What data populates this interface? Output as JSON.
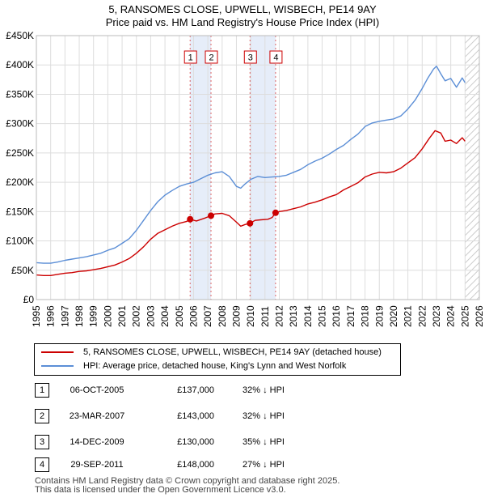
{
  "chart_data": {
    "type": "line",
    "title": "5, RANSOMES CLOSE, UPWELL, WISBECH, PE14 9AY",
    "subtitle": "Price paid vs. HM Land Registry's House Price Index (HPI)",
    "xlim": [
      1995,
      2026
    ],
    "ylim": [
      0,
      450000
    ],
    "x_ticks": [
      1995,
      1996,
      1997,
      1998,
      1999,
      2000,
      2001,
      2002,
      2003,
      2004,
      2005,
      2006,
      2007,
      2008,
      2009,
      2010,
      2011,
      2012,
      2013,
      2014,
      2015,
      2016,
      2017,
      2018,
      2019,
      2020,
      2021,
      2022,
      2023,
      2024,
      2025,
      2026
    ],
    "y_ticks": [
      {
        "value": 0,
        "label": "£0"
      },
      {
        "value": 50000,
        "label": "£50K"
      },
      {
        "value": 100000,
        "label": "£100K"
      },
      {
        "value": 150000,
        "label": "£150K"
      },
      {
        "value": 200000,
        "label": "£200K"
      },
      {
        "value": 250000,
        "label": "£250K"
      },
      {
        "value": 300000,
        "label": "£300K"
      },
      {
        "value": 350000,
        "label": "£350K"
      },
      {
        "value": 400000,
        "label": "£400K"
      },
      {
        "value": 450000,
        "label": "£450K"
      }
    ],
    "grid": true,
    "projection_start": 2025.0,
    "series": [
      {
        "name": "5, RANSOMES CLOSE, UPWELL, WISBECH, PE14 9AY (detached house)",
        "color": "#cc0000",
        "x": [
          1995.0,
          1995.5,
          1996.0,
          1996.5,
          1997.0,
          1997.5,
          1998.0,
          1998.5,
          1999.0,
          1999.5,
          2000.0,
          2000.5,
          2001.0,
          2001.5,
          2002.0,
          2002.5,
          2003.0,
          2003.5,
          2004.0,
          2004.5,
          2005.0,
          2005.5,
          2005.76,
          2006.2,
          2006.8,
          2007.22,
          2007.5,
          2008.0,
          2008.5,
          2009.0,
          2009.3,
          2009.6,
          2009.95,
          2010.3,
          2010.7,
          2011.2,
          2011.5,
          2011.74,
          2012.0,
          2012.5,
          2013.0,
          2013.5,
          2014.0,
          2014.5,
          2015.0,
          2015.5,
          2016.0,
          2016.5,
          2017.0,
          2017.5,
          2018.0,
          2018.5,
          2019.0,
          2019.5,
          2020.0,
          2020.5,
          2021.0,
          2021.5,
          2022.0,
          2022.5,
          2022.9,
          2023.3,
          2023.6,
          2024.0,
          2024.4,
          2024.8,
          2025.0
        ],
        "y": [
          42000,
          41000,
          41000,
          43000,
          45000,
          46000,
          48000,
          49000,
          51000,
          53000,
          56000,
          59000,
          64000,
          70000,
          79000,
          90000,
          103000,
          113000,
          119000,
          125000,
          130000,
          133000,
          137000,
          134000,
          139000,
          143000,
          146000,
          147000,
          143000,
          132000,
          125000,
          128000,
          130000,
          135000,
          136000,
          137000,
          140000,
          148000,
          150000,
          152000,
          155000,
          158000,
          163000,
          166000,
          170000,
          175000,
          179000,
          187000,
          193000,
          199000,
          209000,
          214000,
          217000,
          216000,
          218000,
          224000,
          233000,
          242000,
          257000,
          275000,
          288000,
          284000,
          270000,
          272000,
          266000,
          276000,
          270000
        ]
      },
      {
        "name": "HPI: Average price, detached house, King's Lynn and West Norfolk",
        "color": "#5b8ed6",
        "x": [
          1995.0,
          1995.5,
          1996.0,
          1996.5,
          1997.0,
          1997.5,
          1998.0,
          1998.5,
          1999.0,
          1999.5,
          2000.0,
          2000.5,
          2001.0,
          2001.5,
          2002.0,
          2002.5,
          2003.0,
          2003.5,
          2004.0,
          2004.5,
          2005.0,
          2005.5,
          2006.0,
          2006.5,
          2007.0,
          2007.5,
          2008.0,
          2008.5,
          2009.0,
          2009.3,
          2009.6,
          2010.0,
          2010.5,
          2011.0,
          2011.5,
          2012.0,
          2012.5,
          2013.0,
          2013.5,
          2014.0,
          2014.5,
          2015.0,
          2015.5,
          2016.0,
          2016.5,
          2017.0,
          2017.5,
          2018.0,
          2018.5,
          2019.0,
          2019.5,
          2020.0,
          2020.5,
          2021.0,
          2021.5,
          2022.0,
          2022.4,
          2022.8,
          2023.0,
          2023.3,
          2023.6,
          2024.0,
          2024.4,
          2024.8,
          2025.0
        ],
        "y": [
          63000,
          62000,
          62000,
          64000,
          67000,
          69000,
          71000,
          73000,
          76000,
          79000,
          84000,
          88000,
          96000,
          104000,
          118000,
          135000,
          152000,
          167000,
          178000,
          186000,
          193000,
          197000,
          200000,
          206000,
          212000,
          216000,
          218000,
          210000,
          193000,
          190000,
          197000,
          205000,
          210000,
          208000,
          209000,
          210000,
          212000,
          217000,
          222000,
          230000,
          236000,
          241000,
          248000,
          256000,
          263000,
          273000,
          282000,
          295000,
          301000,
          304000,
          306000,
          308000,
          313000,
          325000,
          340000,
          360000,
          378000,
          393000,
          398000,
          385000,
          373000,
          377000,
          362000,
          378000,
          370000
        ]
      }
    ],
    "sale_markers": [
      {
        "label": "1",
        "x": 2005.76,
        "y": 137000
      },
      {
        "label": "2",
        "x": 2007.22,
        "y": 143000
      },
      {
        "label": "3",
        "x": 2009.95,
        "y": 130000
      },
      {
        "label": "4",
        "x": 2011.74,
        "y": 148000
      }
    ],
    "shaded_ranges": [
      [
        2005.76,
        2007.22
      ],
      [
        2009.95,
        2011.74
      ]
    ]
  },
  "legend": {
    "series1": "5, RANSOMES CLOSE, UPWELL, WISBECH, PE14 9AY (detached house)",
    "series2": "HPI: Average price, detached house, King's Lynn and West Norfolk"
  },
  "sales": [
    {
      "num": "1",
      "date": "06-OCT-2005",
      "price": "£137,000",
      "hpi": "32% ↓ HPI"
    },
    {
      "num": "2",
      "date": "23-MAR-2007",
      "price": "£143,000",
      "hpi": "32% ↓ HPI"
    },
    {
      "num": "3",
      "date": "14-DEC-2009",
      "price": "£130,000",
      "hpi": "35% ↓ HPI"
    },
    {
      "num": "4",
      "date": "29-SEP-2011",
      "price": "£148,000",
      "hpi": "27% ↓ HPI"
    }
  ],
  "footer": {
    "line1": "Contains HM Land Registry data © Crown copyright and database right 2025.",
    "line2": "This data is licensed under the Open Government Licence v3.0."
  },
  "colors": {
    "red": "#cc0000",
    "blue": "#5b8ed6",
    "grid": "#dddddd",
    "shade": "#dce6f7"
  }
}
